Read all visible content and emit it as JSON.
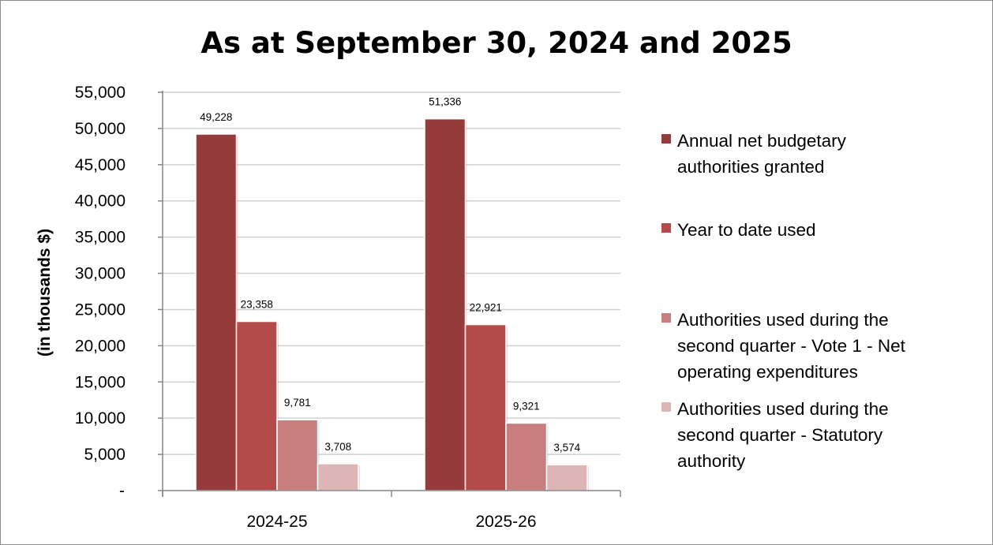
{
  "chart_data": {
    "type": "bar",
    "title": "As at September 30, 2024 and 2025",
    "xlabel": "",
    "ylabel": "(in thousands $)",
    "ylim": [
      0,
      55000
    ],
    "yticks": [
      0,
      5000,
      10000,
      15000,
      20000,
      25000,
      30000,
      35000,
      40000,
      45000,
      50000,
      55000
    ],
    "ytick_labels": [
      "-",
      "5,000",
      "10,000",
      "15,000",
      "20,000",
      "25,000",
      "30,000",
      "35,000",
      "40,000",
      "45,000",
      "50,000",
      "55,000"
    ],
    "grid": true,
    "legend_position": "right",
    "categories": [
      "2024-25",
      "2025-26"
    ],
    "series": [
      {
        "name": "Annual net budgetary authorities granted",
        "legend_lines": [
          "Annual net budgetary",
          "authorities granted"
        ],
        "color": "#963B3B",
        "values": [
          49228,
          51336
        ],
        "labels": [
          "49,228",
          "51,336"
        ]
      },
      {
        "name": "Year to date used",
        "legend_lines": [
          "Year to date used"
        ],
        "color": "#B24B4A",
        "values": [
          23358,
          22921
        ],
        "labels": [
          "23,358",
          "22,921"
        ]
      },
      {
        "name": "Authorities used during the second quarter - Vote 1 - Net operating expenditures",
        "legend_lines": [
          "Authorities used during the",
          "second quarter - Vote 1 - Net",
          "operating expenditures"
        ],
        "color": "#C97D7D",
        "values": [
          9781,
          9321
        ],
        "labels": [
          "9,781",
          "9,321"
        ]
      },
      {
        "name": "Authorities used during the second quarter  - Statutory authority",
        "legend_lines": [
          "Authorities used during the",
          "second quarter  - Statutory",
          "authority"
        ],
        "color": "#DDB5B5",
        "values": [
          3708,
          3574
        ],
        "labels": [
          "3,708",
          "3,574"
        ]
      }
    ]
  }
}
